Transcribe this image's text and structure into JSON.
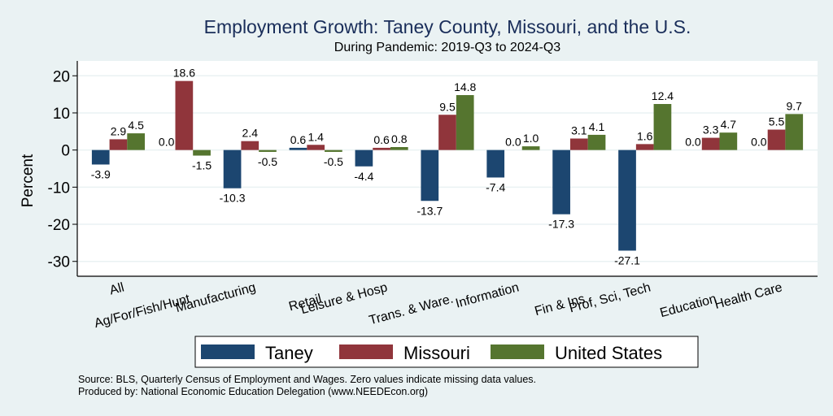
{
  "chart_data": {
    "type": "bar",
    "title": "Employment Growth: Taney County, Missouri, and the U.S.",
    "subtitle": "During Pandemic: 2019-Q3 to 2024-Q3",
    "xlabel": "",
    "ylabel": "Percent",
    "ylim": [
      -34,
      24
    ],
    "yticks": [
      20,
      10,
      0,
      -10,
      -20,
      -30
    ],
    "grid": true,
    "legend_position": "bottom",
    "categories": [
      "All",
      "Ag/For/Fish/Hunt",
      "Manufacturing",
      "Retail",
      "Leisure & Hosp",
      "Trans. & Ware.",
      "Information",
      "Fin & Ins",
      "Prof, Sci, Tech",
      "Education",
      "Health Care"
    ],
    "series": [
      {
        "name": "Taney",
        "color": "#1c4670",
        "values": [
          -3.9,
          0.0,
          -10.3,
          0.6,
          -4.4,
          -13.7,
          -7.4,
          -17.3,
          -27.1,
          0.0,
          0.0
        ]
      },
      {
        "name": "Missouri",
        "color": "#90353b",
        "values": [
          2.9,
          18.6,
          2.4,
          1.4,
          0.6,
          9.5,
          0.0,
          3.1,
          1.6,
          3.3,
          5.5
        ]
      },
      {
        "name": "United States",
        "color": "#55752f",
        "values": [
          4.5,
          -1.5,
          -0.5,
          -0.5,
          0.8,
          14.8,
          1.0,
          4.1,
          12.4,
          4.7,
          9.7
        ]
      }
    ],
    "notes": [
      "Source: BLS, Quarterly Census of Employment and Wages. Zero values indicate missing data values.",
      "Produced by: National Economic Education Delegation (www.NEEDEcon.org)"
    ]
  }
}
